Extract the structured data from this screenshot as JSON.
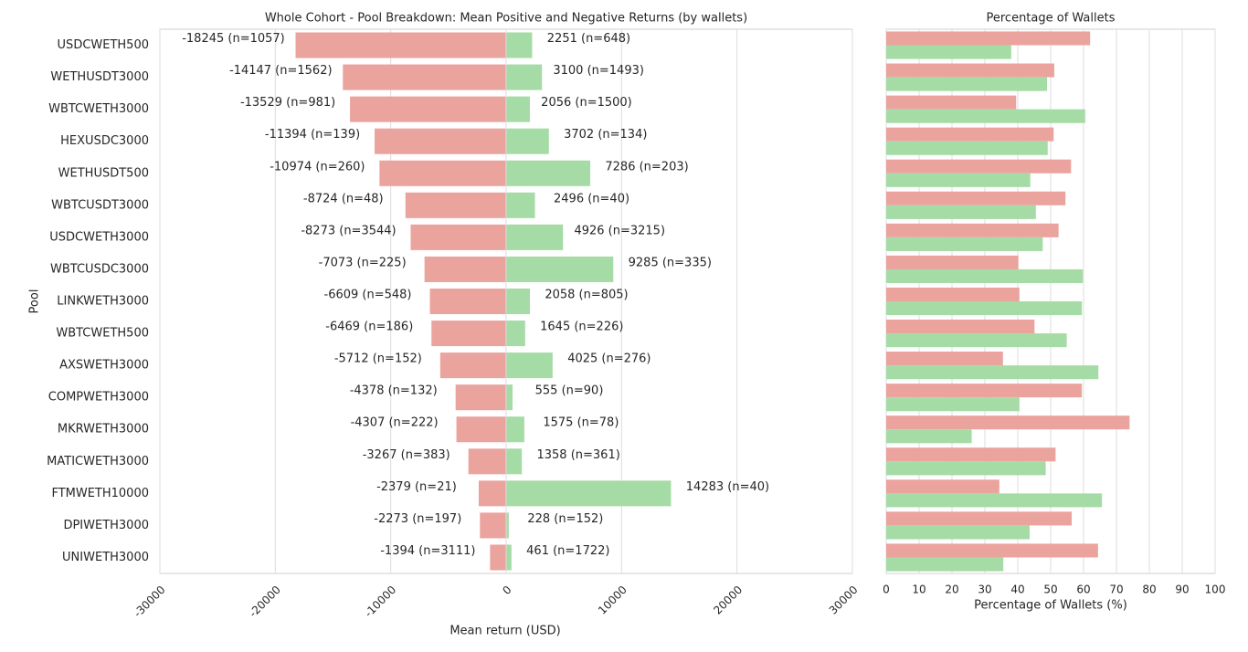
{
  "chart_data": [
    {
      "type": "diverging-bar",
      "title": "Whole Cohort - Pool Breakdown: Mean Positive and Negative Returns (by wallets)",
      "xlabel": "Mean return (USD)",
      "ylabel": "Pool",
      "categories": [
        "USDCWETH500",
        "WETHUSDT3000",
        "WBTCWETH3000",
        "HEXUSDC3000",
        "WETHUSDT500",
        "WBTCUSDT3000",
        "USDCWETH3000",
        "WBTCUSDC3000",
        "LINKWETH3000",
        "WBTCWETH500",
        "AXSWETH3000",
        "COMPWETH3000",
        "MKRWETH3000",
        "MATICWETH3000",
        "FTMWETH10000",
        "DPIWETH3000",
        "UNIWETH3000"
      ],
      "series": [
        {
          "color": "#eba39e",
          "values": [
            -18245,
            -14147,
            -13529,
            -11394,
            -10974,
            -8724,
            -8273,
            -7073,
            -6609,
            -6469,
            -5712,
            -4378,
            -4307,
            -3267,
            -2379,
            -2273,
            -1394
          ],
          "value_labels": [
            "-18245 (n=1057)",
            "-14147 (n=1562)",
            "-13529 (n=981)",
            "-11394 (n=139)",
            "-10974 (n=260)",
            "-8724 (n=48)",
            "-8273 (n=3544)",
            "-7073 (n=225)",
            "-6609 (n=548)",
            "-6469 (n=186)",
            "-5712 (n=152)",
            "-4378 (n=132)",
            "-4307 (n=222)",
            "-3267 (n=383)",
            "-2379 (n=21)",
            "-2273 (n=197)",
            "-1394 (n=3111)"
          ]
        },
        {
          "color": "#a5dba5",
          "values": [
            2251,
            3100,
            2056,
            3702,
            7286,
            2496,
            4926,
            9285,
            2058,
            1645,
            4025,
            555,
            1575,
            1358,
            14283,
            228,
            461
          ],
          "value_labels": [
            "2251 (n=648)",
            "3100 (n=1493)",
            "2056 (n=1500)",
            "3702 (n=134)",
            "7286 (n=203)",
            "2496 (n=40)",
            "4926 (n=3215)",
            "9285 (n=335)",
            "2058 (n=805)",
            "1645 (n=226)",
            "4025 (n=276)",
            "555 (n=90)",
            "1575 (n=78)",
            "1358 (n=361)",
            "14283 (n=40)",
            "228 (n=152)",
            "461 (n=1722)"
          ]
        }
      ],
      "xlim": [
        -30000,
        30000
      ],
      "xticks": [
        -30000,
        -20000,
        -10000,
        0,
        10000,
        20000,
        30000
      ],
      "grid": true
    },
    {
      "type": "grouped-bar",
      "title": "Percentage of Wallets",
      "xlabel": "Percentage of Wallets (%)",
      "series": [
        {
          "color": "#eba39e",
          "values": [
            62.0,
            51.1,
            39.5,
            50.9,
            56.2,
            54.5,
            52.4,
            40.2,
            40.5,
            45.1,
            35.5,
            59.5,
            74.0,
            51.5,
            34.4,
            56.4,
            64.4
          ]
        },
        {
          "color": "#a5dba5",
          "values": [
            38.0,
            48.9,
            60.5,
            49.1,
            43.8,
            45.5,
            47.6,
            59.8,
            59.5,
            54.9,
            64.5,
            40.5,
            26.0,
            48.5,
            65.6,
            43.6,
            35.6
          ]
        }
      ],
      "xlim": [
        0,
        100
      ],
      "xticks": [
        0,
        10,
        20,
        30,
        40,
        50,
        60,
        70,
        80,
        90,
        100
      ],
      "grid": true
    }
  ]
}
